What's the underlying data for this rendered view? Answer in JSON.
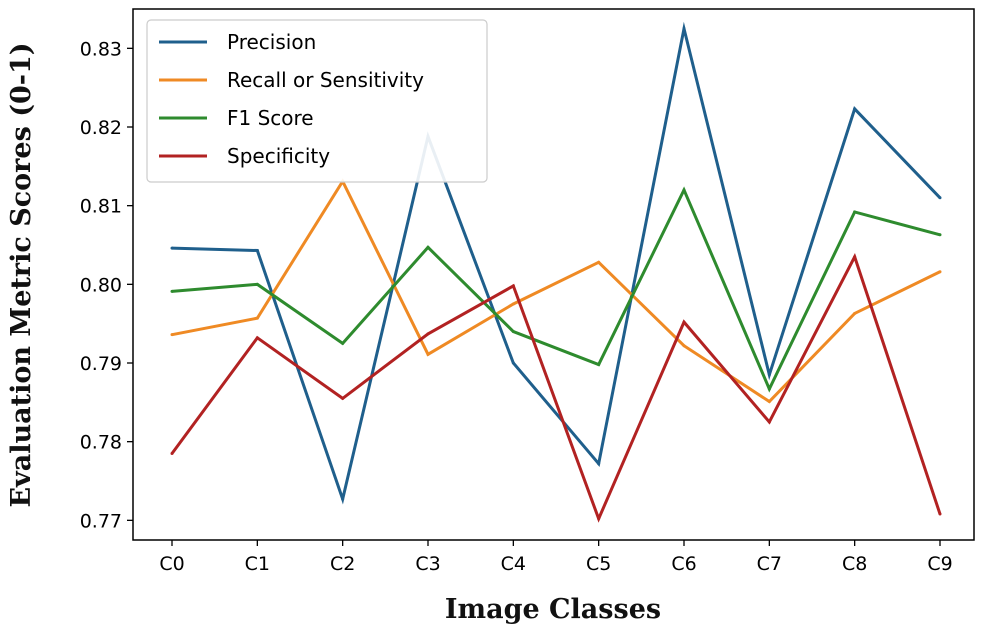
{
  "chart_data": {
    "type": "line",
    "title": "",
    "xlabel": "Image Classes",
    "ylabel": "Evaluation Metric Scores (0-1)",
    "categories": [
      "C0",
      "C1",
      "C2",
      "C3",
      "C4",
      "C5",
      "C6",
      "C7",
      "C8",
      "C9"
    ],
    "yticks": [
      "0.77",
      "0.78",
      "0.79",
      "0.80",
      "0.81",
      "0.82",
      "0.83"
    ],
    "ylim": [
      0.7675,
      0.835
    ],
    "grid": false,
    "legend_position": "top-left",
    "series": [
      {
        "name": "Precision",
        "color": "#1f5f8c",
        "values": [
          0.8046,
          0.8043,
          0.7727,
          0.8188,
          0.79,
          0.7772,
          0.8325,
          0.7885,
          0.8223,
          0.811
        ]
      },
      {
        "name": "Recall or Sensitivity",
        "color": "#ef8a24",
        "values": [
          0.7936,
          0.7957,
          0.8131,
          0.7911,
          0.7975,
          0.8028,
          0.7922,
          0.7851,
          0.7963,
          0.8016
        ]
      },
      {
        "name": "F1 Score",
        "color": "#2e8b2e",
        "values": [
          0.7991,
          0.8,
          0.7925,
          0.8047,
          0.794,
          0.7898,
          0.812,
          0.7867,
          0.8092,
          0.8063
        ]
      },
      {
        "name": "Specificity",
        "color": "#b22222",
        "values": [
          0.7785,
          0.7932,
          0.7855,
          0.7937,
          0.7998,
          0.7702,
          0.7952,
          0.7825,
          0.8035,
          0.7708
        ]
      }
    ]
  }
}
